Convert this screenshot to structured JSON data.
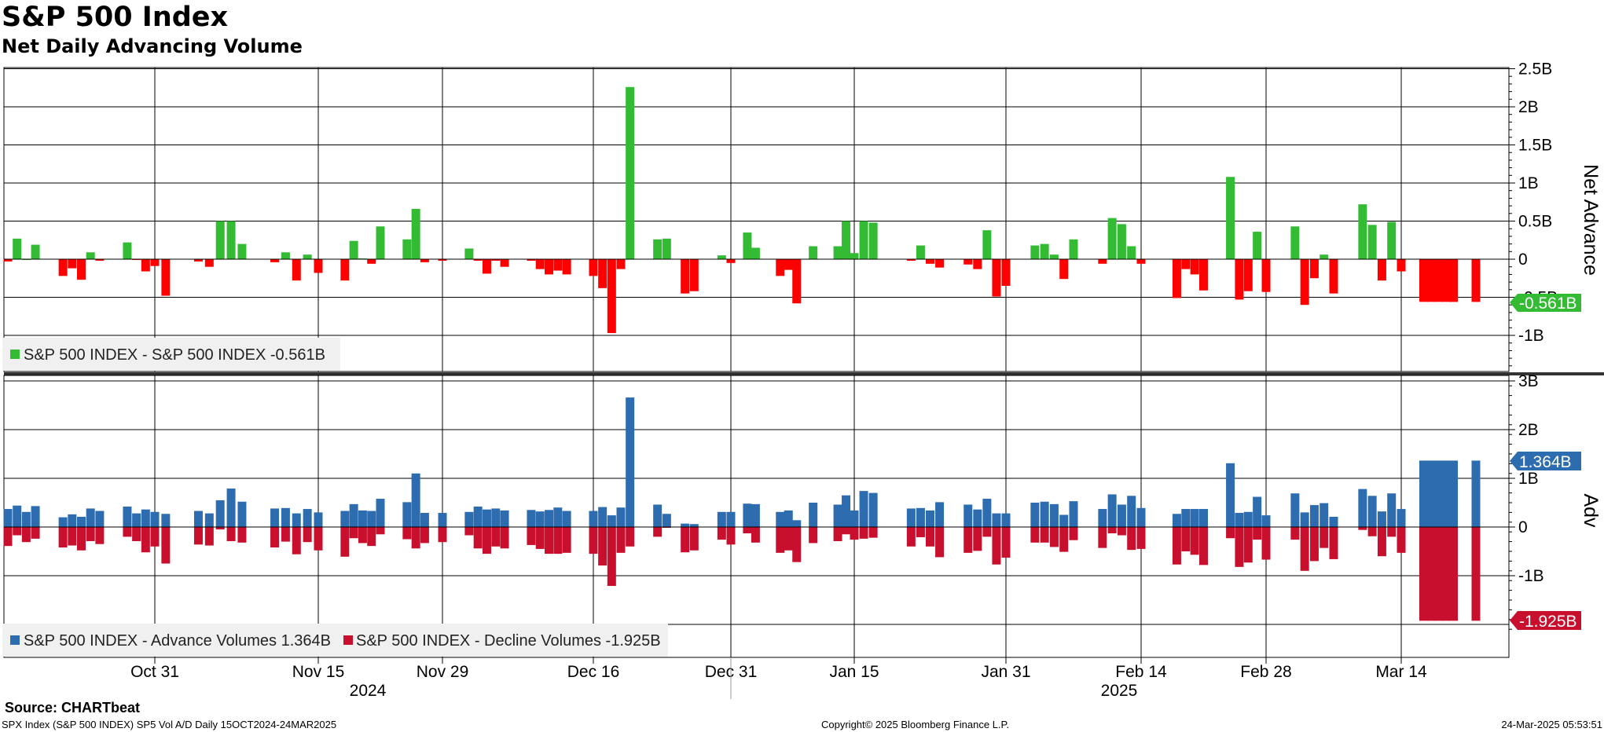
{
  "header": {
    "title": "S&P 500 Index",
    "subtitle": "Net Daily Advancing Volume"
  },
  "footer": {
    "source": "Source: CHARTbeat",
    "left": "SPX Index (S&P 500 INDEX) SP5 Vol A/D  Daily 15OCT2024-24MAR2025",
    "middle": "Copyright© 2025 Bloomberg Finance L.P.",
    "right": "24-Mar-2025 05:53:51"
  },
  "colors": {
    "net_positive": "#33bb33",
    "net_negative": "#ff0000",
    "advance": "#2e6cb0",
    "decline": "#c8102e",
    "tag_net": "#33bb33",
    "tag_adv": "#2e6cb0",
    "tag_dec": "#c8102e"
  },
  "chart_data": {
    "type": "bar",
    "x_range": [
      "2024-10-15",
      "2025-03-24"
    ],
    "x_ticks": [
      "Oct 31",
      "Nov 15",
      "Nov 29",
      "Dec 16",
      "Dec 31",
      "Jan 15",
      "Jan 31",
      "Feb 14",
      "Feb 28",
      "Mar 14"
    ],
    "year_labels": [
      "2024",
      "2025"
    ],
    "top_panel": {
      "y_axis_label": "Net Advance",
      "ylim": [
        -1.5,
        2.6
      ],
      "y_ticks": [
        "2.5B",
        "2B",
        "1.5B",
        "1B",
        "0.5B",
        "0",
        "-0.5B",
        "-1B"
      ],
      "legend": "S&P 500 INDEX - S&P 500 INDEX -0.561B",
      "last_value_label": "-0.561B",
      "series": [
        {
          "name": "S&P 500 INDEX",
          "dates": [
            "2024-10-15",
            "2024-10-16",
            "2024-10-17",
            "2024-10-18",
            "2024-10-21",
            "2024-10-22",
            "2024-10-23",
            "2024-10-24",
            "2024-10-25",
            "2024-10-28",
            "2024-10-29",
            "2024-10-30",
            "2024-10-31",
            "2024-11-01",
            "2024-11-04",
            "2024-11-05",
            "2024-11-06",
            "2024-11-07",
            "2024-11-08",
            "2024-11-11",
            "2024-11-12",
            "2024-11-13",
            "2024-11-14",
            "2024-11-15",
            "2024-11-18",
            "2024-11-19",
            "2024-11-20",
            "2024-11-21",
            "2024-11-22",
            "2024-11-25",
            "2024-11-26",
            "2024-11-27",
            "2024-11-29",
            "2024-12-02",
            "2024-12-03",
            "2024-12-04",
            "2024-12-05",
            "2024-12-06",
            "2024-12-09",
            "2024-12-10",
            "2024-12-11",
            "2024-12-12",
            "2024-12-13",
            "2024-12-16",
            "2024-12-17",
            "2024-12-18",
            "2024-12-19",
            "2024-12-20",
            "2024-12-23",
            "2024-12-24",
            "2024-12-26",
            "2024-12-27",
            "2024-12-30",
            "2024-12-31",
            "2025-01-02",
            "2025-01-03",
            "2025-01-06",
            "2025-01-07",
            "2025-01-08",
            "2025-01-10",
            "2025-01-13",
            "2025-01-14",
            "2025-01-15",
            "2025-01-16",
            "2025-01-17",
            "2025-01-21",
            "2025-01-22",
            "2025-01-23",
            "2025-01-24",
            "2025-01-27",
            "2025-01-28",
            "2025-01-29",
            "2025-01-30",
            "2025-01-31",
            "2025-02-03",
            "2025-02-04",
            "2025-02-05",
            "2025-02-06",
            "2025-02-07",
            "2025-02-10",
            "2025-02-11",
            "2025-02-12",
            "2025-02-13",
            "2025-02-14",
            "2025-02-18",
            "2025-02-19",
            "2025-02-20",
            "2025-02-21",
            "2025-02-24",
            "2025-02-25",
            "2025-02-26",
            "2025-02-27",
            "2025-02-28",
            "2025-03-03",
            "2025-03-04",
            "2025-03-05",
            "2025-03-06",
            "2025-03-07",
            "2025-03-10",
            "2025-03-11",
            "2025-03-12",
            "2025-03-13",
            "2025-03-14",
            "2025-03-17",
            "2025-03-18",
            "2025-03-19",
            "2025-03-20",
            "2025-03-21",
            "2025-03-24"
          ],
          "values": [
            -0.03,
            0.27,
            0.0,
            0.19,
            -0.22,
            -0.12,
            -0.27,
            0.09,
            -0.02,
            0.22,
            -0.01,
            -0.16,
            -0.09,
            -0.48,
            -0.03,
            -0.1,
            0.5,
            0.5,
            0.2,
            -0.04,
            0.09,
            -0.28,
            0.06,
            -0.18,
            -0.28,
            0.24,
            0.01,
            -0.06,
            0.43,
            0.26,
            0.66,
            -0.04,
            -0.02,
            0.14,
            -0.02,
            -0.19,
            -0.02,
            -0.1,
            -0.02,
            -0.13,
            -0.2,
            -0.15,
            -0.2,
            -0.22,
            -0.38,
            -0.97,
            -0.13,
            2.26,
            0.26,
            0.27,
            -0.45,
            -0.42,
            0.05,
            -0.05,
            0.35,
            0.15,
            -0.22,
            -0.14,
            -0.58,
            0.17,
            0.17,
            0.5,
            0.08,
            0.5,
            0.48,
            -0.02,
            0.18,
            -0.06,
            -0.11,
            -0.07,
            -0.13,
            0.38,
            -0.49,
            -0.35,
            0.18,
            0.2,
            0.06,
            -0.26,
            0.26,
            -0.06,
            0.54,
            0.46,
            0.17,
            -0.06,
            -0.51,
            -0.13,
            -0.2,
            -0.41,
            1.08,
            -0.53,
            -0.42,
            0.36,
            -0.43,
            0.43,
            -0.6,
            -0.25,
            0.06,
            -0.45,
            0.72,
            0.45,
            -0.28,
            0.49,
            -0.16,
            -0.56,
            -0.56,
            -0.56,
            -0.56,
            -0.561,
            -0.561
          ]
        }
      ]
    },
    "bottom_panel": {
      "y_axis_label": "Adv",
      "ylim": [
        -2.1,
        3.0
      ],
      "y_ticks": [
        "3B",
        "2B",
        "1B",
        "0",
        "-1B"
      ],
      "legend": [
        {
          "label": "S&P 500 INDEX - Advance Volumes 1.364B"
        },
        {
          "label": "S&P 500 INDEX - Decline Volumes -1.925B"
        }
      ],
      "last_value_labels": [
        "1.364B",
        "-1.925B"
      ],
      "series": [
        {
          "name": "S&P 500 INDEX - Advance Volumes",
          "values": [
            0.37,
            0.44,
            0.31,
            0.43,
            0.2,
            0.26,
            0.21,
            0.38,
            0.33,
            0.42,
            0.28,
            0.36,
            0.31,
            0.27,
            0.33,
            0.28,
            0.55,
            0.79,
            0.52,
            0.38,
            0.39,
            0.28,
            0.37,
            0.3,
            0.33,
            0.47,
            0.34,
            0.33,
            0.58,
            0.51,
            1.1,
            0.29,
            0.29,
            0.31,
            0.42,
            0.36,
            0.38,
            0.34,
            0.35,
            0.32,
            0.35,
            0.4,
            0.33,
            0.33,
            0.41,
            0.24,
            0.4,
            2.66,
            0.46,
            0.27,
            0.07,
            0.06,
            0.31,
            0.31,
            0.48,
            0.47,
            0.31,
            0.34,
            0.14,
            0.5,
            0.46,
            0.65,
            0.34,
            0.74,
            0.7,
            0.38,
            0.39,
            0.34,
            0.51,
            0.46,
            0.36,
            0.58,
            0.28,
            0.28,
            0.5,
            0.52,
            0.47,
            0.25,
            0.53,
            0.37,
            0.67,
            0.46,
            0.64,
            0.39,
            0.27,
            0.37,
            0.37,
            0.37,
            1.31,
            0.29,
            0.31,
            0.62,
            0.24,
            0.69,
            0.3,
            0.45,
            0.49,
            0.21,
            0.78,
            0.64,
            0.32,
            0.69,
            0.37,
            1.364,
            1.364,
            1.364,
            1.364,
            1.364,
            1.364
          ]
        },
        {
          "name": "S&P 500 INDEX - Decline Volumes",
          "values": [
            -0.39,
            -0.17,
            -0.31,
            -0.24,
            -0.42,
            -0.38,
            -0.48,
            -0.29,
            -0.35,
            -0.2,
            -0.29,
            -0.52,
            -0.4,
            -0.75,
            -0.36,
            -0.38,
            -0.05,
            -0.29,
            -0.32,
            -0.42,
            -0.3,
            -0.56,
            -0.31,
            -0.48,
            -0.61,
            -0.23,
            -0.33,
            -0.39,
            -0.15,
            -0.25,
            -0.44,
            -0.33,
            -0.31,
            -0.17,
            -0.44,
            -0.55,
            -0.4,
            -0.44,
            -0.37,
            -0.45,
            -0.55,
            -0.55,
            -0.53,
            -0.55,
            -0.79,
            -1.21,
            -0.53,
            -0.4,
            -0.2,
            -0.01,
            -0.52,
            -0.48,
            -0.26,
            -0.36,
            -0.13,
            -0.32,
            -0.53,
            -0.48,
            -0.72,
            -0.33,
            -0.29,
            -0.15,
            -0.26,
            -0.24,
            -0.22,
            -0.4,
            -0.21,
            -0.4,
            -0.62,
            -0.53,
            -0.49,
            -0.2,
            -0.77,
            -0.63,
            -0.32,
            -0.32,
            -0.41,
            -0.51,
            -0.27,
            -0.43,
            -0.13,
            -0.17,
            -0.47,
            -0.45,
            -0.77,
            -0.5,
            -0.57,
            -0.78,
            -0.23,
            -0.82,
            -0.73,
            -0.26,
            -0.67,
            -0.26,
            -0.9,
            -0.7,
            -0.43,
            -0.66,
            -0.06,
            -0.19,
            -0.6,
            -0.2,
            -0.53,
            -1.925,
            -1.925,
            -1.925,
            -1.925,
            -1.925,
            -1.925
          ]
        }
      ]
    }
  }
}
